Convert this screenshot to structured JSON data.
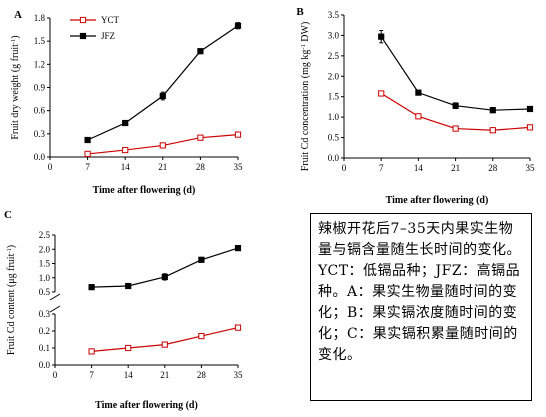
{
  "chart_data": [
    {
      "panel": "A",
      "type": "line",
      "x": [
        7,
        14,
        21,
        28,
        35
      ],
      "xlim": [
        0,
        35
      ],
      "xticks": [
        0,
        7,
        14,
        21,
        28,
        35
      ],
      "ylim": [
        0,
        1.8
      ],
      "yticks": [
        0,
        0.3,
        0.6,
        0.9,
        1.2,
        1.5,
        1.8
      ],
      "ytick_labels": [
        "0.0",
        "0.3",
        "0.6",
        "0.9",
        "1.2",
        "1.5",
        "1.8"
      ],
      "xlabel": "Time after flowering (d)",
      "ylabel": "Fruit dry weight (g fruit-1)",
      "legend_position": "top-left",
      "series": [
        {
          "name": "YCT",
          "values": [
            0.04,
            0.09,
            0.15,
            0.25,
            0.29
          ],
          "errors": [
            0.01,
            0.01,
            0.01,
            0.02,
            0.02
          ],
          "color": "#cc0000",
          "marker": "open-square"
        },
        {
          "name": "JFZ",
          "values": [
            0.22,
            0.44,
            0.79,
            1.37,
            1.7
          ],
          "errors": [
            0.02,
            0.02,
            0.05,
            0.03,
            0.04
          ],
          "color": "#000000",
          "marker": "filled-square"
        }
      ]
    },
    {
      "panel": "B",
      "type": "line",
      "x": [
        7,
        14,
        21,
        28,
        35
      ],
      "xlim": [
        0,
        35
      ],
      "xticks": [
        0,
        7,
        14,
        21,
        28,
        35
      ],
      "ylim": [
        0,
        3.5
      ],
      "yticks": [
        0,
        0.5,
        1.0,
        1.5,
        2.0,
        2.5,
        3.0,
        3.5
      ],
      "ytick_labels": [
        "0.0",
        "0.5",
        "1.0",
        "1.5",
        "2.0",
        "2.5",
        "3.0",
        "3.5"
      ],
      "xlabel": "Time after flowering (d)",
      "ylabel": "Fruit Cd concentration (mg kg-1 DW)",
      "series": [
        {
          "name": "YCT",
          "values": [
            1.58,
            1.02,
            0.72,
            0.68,
            0.75
          ],
          "errors": [
            0.05,
            0.03,
            0.04,
            0.03,
            0.03
          ],
          "color": "#cc0000",
          "marker": "open-square"
        },
        {
          "name": "JFZ",
          "values": [
            2.97,
            1.6,
            1.28,
            1.17,
            1.2
          ],
          "errors": [
            0.15,
            0.05,
            0.07,
            0.06,
            0.05
          ],
          "color": "#000000",
          "marker": "filled-square"
        }
      ]
    },
    {
      "panel": "C",
      "type": "line",
      "broken_axis": true,
      "x": [
        7,
        14,
        21,
        28,
        35
      ],
      "xlim": [
        0,
        35
      ],
      "xticks": [
        0,
        7,
        14,
        21,
        28,
        35
      ],
      "ylim_lower": [
        0,
        0.3
      ],
      "yticks_lower": [
        0,
        0.1,
        0.2,
        0.3
      ],
      "ytick_labels_lower": [
        "0.0",
        "0.1",
        "0.2",
        "0.3"
      ],
      "ylim_upper": [
        0.5,
        2.5
      ],
      "yticks_upper": [
        0.5,
        1.0,
        1.5,
        2.0,
        2.5
      ],
      "ytick_labels_upper": [
        "0.5",
        "1.0",
        "1.5",
        "2.0",
        "2.5"
      ],
      "xlabel": "Time after flowering (d)",
      "ylabel": "Fruit Cd content (μg fruit-1)",
      "series": [
        {
          "name": "YCT",
          "values": [
            0.08,
            0.1,
            0.12,
            0.17,
            0.22
          ],
          "errors": [
            0.005,
            0.005,
            0.006,
            0.006,
            0.01
          ],
          "color": "#cc0000",
          "marker": "open-square"
        },
        {
          "name": "JFZ",
          "values": [
            0.67,
            0.71,
            1.03,
            1.63,
            2.04
          ],
          "errors": [
            0.03,
            0.04,
            0.11,
            0.06,
            0.07
          ],
          "color": "#000000",
          "marker": "filled-square"
        }
      ]
    }
  ],
  "caption": "辣椒开花后7–35天内果实生物量与镉含量随生长时间的变化。YCT：低镉品种；JFZ：高镉品种。A：果实生物量随时间的变化；B：果实镉浓度随时间的变化；C：果实镉积累量随时间的变化。"
}
